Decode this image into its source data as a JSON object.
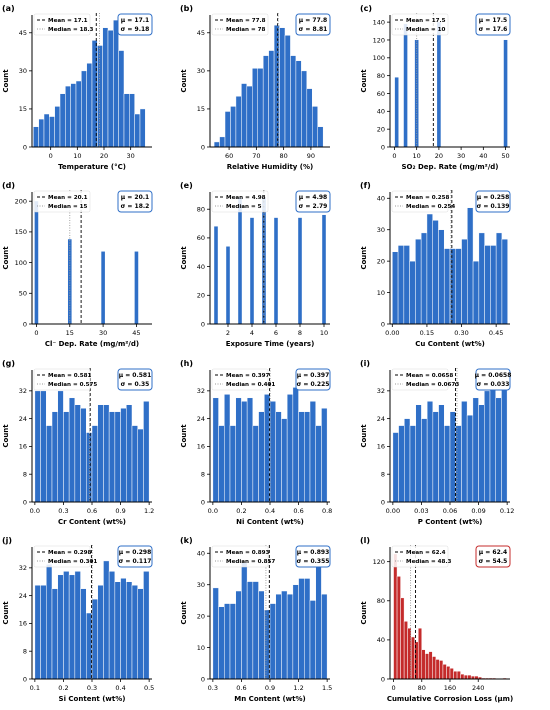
{
  "colors": {
    "bar_default": "#2f6fc7",
    "bar_last": "#c42b2b",
    "stats_border_default": "#2f6fc7",
    "stats_border_last": "#c42b2b",
    "mean_line": "#000000",
    "median_line": "#999999"
  },
  "chart_data": [
    {
      "panel": "(a)",
      "type": "bar",
      "xlabel": "Temperature (°C)",
      "ylabel": "Count",
      "xlim": [
        -7,
        38
      ],
      "ylim": [
        0,
        52
      ],
      "xticks": [
        0,
        10,
        20,
        30
      ],
      "yticks": [
        0,
        15,
        30,
        45
      ],
      "bins": [
        -5.5,
        -3.5,
        -1.5,
        0.5,
        2.5,
        4.5,
        6.5,
        8.5,
        10.5,
        12.5,
        14.5,
        16.5,
        18.5,
        20.5,
        22.5,
        24.5,
        26.5,
        28.5,
        30.5,
        32.5,
        34.5
      ],
      "values": [
        8,
        11,
        13,
        12,
        16,
        21,
        24,
        25,
        26,
        30,
        33,
        42,
        40,
        47,
        46,
        50,
        38,
        21,
        21,
        13,
        15
      ],
      "mean": 17.1,
      "median": 18.3,
      "legend": [
        "Mean = 17.1",
        "Median = 18.3"
      ],
      "stats": [
        "μ = 17.1",
        "σ = 9.18"
      ]
    },
    {
      "panel": "(b)",
      "type": "bar",
      "xlabel": "Relative Humidity (%)",
      "ylabel": "Count",
      "xlim": [
        53,
        97
      ],
      "ylim": [
        0,
        52
      ],
      "xticks": [
        60,
        70,
        80,
        90
      ],
      "yticks": [
        0,
        15,
        30,
        45
      ],
      "bins": [
        55.5,
        57.5,
        59.5,
        61.5,
        63.5,
        65.5,
        67.5,
        69.5,
        71.5,
        73.5,
        75.5,
        77.5,
        79.5,
        81.5,
        83.5,
        85.5,
        87.5,
        89.5,
        91.5,
        93.5
      ],
      "values": [
        2,
        4,
        14,
        16,
        20,
        25,
        24,
        31,
        31,
        36,
        38,
        48,
        47,
        44,
        36,
        34,
        30,
        23,
        16,
        8
      ],
      "mean": 77.8,
      "median": 78,
      "legend": [
        "Mean = 77.8",
        "Median = 78"
      ],
      "stats": [
        "μ = 77.8",
        "σ = 8.81"
      ]
    },
    {
      "panel": "(c)",
      "type": "bar",
      "xlabel": "SO₂ Dep. Rate (mg/m²/d)",
      "ylabel": "Count",
      "xlim": [
        -2,
        52
      ],
      "ylim": [
        0,
        148
      ],
      "xticks": [
        0,
        10,
        20,
        30,
        40,
        50
      ],
      "yticks": [
        0,
        20,
        40,
        60,
        80,
        100,
        120,
        140
      ],
      "bins": [
        1,
        5,
        10,
        20,
        50
      ],
      "values": [
        78,
        138,
        120,
        140,
        120
      ],
      "mean": 17.5,
      "median": 10,
      "legend": [
        "Mean = 17.5",
        "Median = 10"
      ],
      "stats": [
        "μ = 17.5",
        "σ = 17.6"
      ]
    },
    {
      "panel": "(d)",
      "type": "bar",
      "xlabel": "Cl⁻ Dep. Rate (mg/m²/d)",
      "ylabel": "Count",
      "xlim": [
        -2,
        52
      ],
      "ylim": [
        0,
        215
      ],
      "xticks": [
        0,
        15,
        30,
        45
      ],
      "yticks": [
        0,
        50,
        100,
        150,
        200
      ],
      "bins": [
        0,
        15,
        30,
        45
      ],
      "values": [
        200,
        138,
        118,
        118
      ],
      "mean": 20.1,
      "median": 15,
      "legend": [
        "Mean = 20.1",
        "Median = 15"
      ],
      "stats": [
        "μ = 20.1",
        "σ = 18.2"
      ]
    },
    {
      "panel": "(e)",
      "type": "bar",
      "xlabel": "Exposure Time (years)",
      "ylabel": "Count",
      "xlim": [
        0.5,
        10.5
      ],
      "ylim": [
        0,
        92
      ],
      "xticks": [
        2,
        4,
        6,
        8,
        10
      ],
      "yticks": [
        0,
        20,
        40,
        60,
        80
      ],
      "bins": [
        1,
        2,
        3,
        4,
        5,
        6,
        8,
        10
      ],
      "values": [
        68,
        54,
        88,
        74,
        88,
        74,
        74,
        76
      ],
      "mean": 4.98,
      "median": 5,
      "legend": [
        "Mean = 4.98",
        "Median = 5"
      ],
      "stats": [
        "μ = 4.98",
        "σ = 2.79"
      ]
    },
    {
      "panel": "(f)",
      "type": "bar",
      "xlabel": "Cu Content (wt%)",
      "ylabel": "Count",
      "xlim": [
        -0.01,
        0.51
      ],
      "ylim": [
        0,
        42
      ],
      "xticks": [
        0.0,
        0.15,
        0.3,
        0.45
      ],
      "yticks": [
        0,
        10,
        20,
        30,
        40
      ],
      "bins": [
        0.0125,
        0.0375,
        0.0625,
        0.0875,
        0.1125,
        0.1375,
        0.1625,
        0.1875,
        0.2125,
        0.2375,
        0.2625,
        0.2875,
        0.3125,
        0.3375,
        0.3625,
        0.3875,
        0.4125,
        0.4375,
        0.4625,
        0.4875
      ],
      "values": [
        23,
        25,
        25,
        20,
        27,
        29,
        35,
        33,
        30,
        24,
        24,
        24,
        27,
        37,
        20,
        29,
        25,
        25,
        29,
        27
      ],
      "mean": 0.258,
      "median": 0.254,
      "legend": [
        "Mean = 0.258",
        "Median = 0.254"
      ],
      "stats": [
        "μ = 0.258",
        "σ = 0.139"
      ]
    },
    {
      "panel": "(g)",
      "type": "bar",
      "xlabel": "Cr Content (wt%)",
      "ylabel": "Count",
      "xlim": [
        -0.03,
        1.23
      ],
      "ylim": [
        0,
        38
      ],
      "xticks": [
        0.0,
        0.3,
        0.6,
        0.9,
        1.2
      ],
      "yticks": [
        0,
        8,
        16,
        24,
        32
      ],
      "bins": [
        0.03,
        0.09,
        0.15,
        0.21,
        0.27,
        0.33,
        0.39,
        0.45,
        0.51,
        0.57,
        0.63,
        0.69,
        0.75,
        0.81,
        0.87,
        0.93,
        0.99,
        1.05,
        1.11,
        1.17
      ],
      "values": [
        32,
        32,
        22,
        26,
        32,
        26,
        30,
        28,
        27,
        20,
        22,
        28,
        28,
        26,
        26,
        27,
        28,
        22,
        21,
        29
      ],
      "mean": 0.581,
      "median": 0.575,
      "legend": [
        "Mean = 0.581",
        "Median = 0.575"
      ],
      "stats": [
        "μ = 0.581",
        "σ = 0.35"
      ]
    },
    {
      "panel": "(h)",
      "type": "bar",
      "xlabel": "Ni Content (wt%)",
      "ylabel": "Count",
      "xlim": [
        -0.02,
        0.82
      ],
      "ylim": [
        0,
        38
      ],
      "xticks": [
        0.0,
        0.2,
        0.4,
        0.6,
        0.8
      ],
      "yticks": [
        0,
        8,
        16,
        24,
        32
      ],
      "bins": [
        0.02,
        0.06,
        0.1,
        0.14,
        0.18,
        0.22,
        0.26,
        0.3,
        0.34,
        0.38,
        0.42,
        0.46,
        0.5,
        0.54,
        0.58,
        0.62,
        0.66,
        0.7,
        0.74,
        0.78
      ],
      "values": [
        30,
        22,
        31,
        22,
        30,
        29,
        30,
        22,
        26,
        31,
        29,
        26,
        24,
        31,
        33,
        26,
        26,
        29,
        22,
        27
      ],
      "mean": 0.397,
      "median": 0.401,
      "legend": [
        "Mean = 0.397",
        "Median = 0.401"
      ],
      "stats": [
        "μ = 0.397",
        "σ = 0.225"
      ]
    },
    {
      "panel": "(i)",
      "type": "bar",
      "xlabel": "P Content (wt%)",
      "ylabel": "Count",
      "xlim": [
        -0.003,
        0.123
      ],
      "ylim": [
        0,
        38
      ],
      "xticks": [
        0.0,
        0.03,
        0.06,
        0.09,
        0.12
      ],
      "yticks": [
        0,
        8,
        16,
        24,
        32
      ],
      "bins": [
        0.003,
        0.009,
        0.015,
        0.021,
        0.027,
        0.033,
        0.039,
        0.045,
        0.051,
        0.057,
        0.063,
        0.069,
        0.075,
        0.081,
        0.087,
        0.093,
        0.099,
        0.105,
        0.111,
        0.117
      ],
      "values": [
        20,
        22,
        24,
        22,
        28,
        24,
        29,
        26,
        28,
        22,
        26,
        22,
        29,
        25,
        30,
        28,
        32,
        34,
        30,
        34
      ],
      "mean": 0.0658,
      "median": 0.0673,
      "legend": [
        "Mean = 0.0658",
        "Median = 0.0673"
      ],
      "stats": [
        "μ = 0.0658",
        "σ = 0.033"
      ]
    },
    {
      "panel": "(j)",
      "type": "bar",
      "xlabel": "Si Content (wt%)",
      "ylabel": "Count",
      "xlim": [
        0.09,
        0.51
      ],
      "ylim": [
        0,
        38
      ],
      "xticks": [
        0.1,
        0.2,
        0.3,
        0.4,
        0.5
      ],
      "yticks": [
        0,
        8,
        16,
        24,
        32
      ],
      "bins": [
        0.11,
        0.13,
        0.15,
        0.17,
        0.19,
        0.21,
        0.23,
        0.25,
        0.27,
        0.29,
        0.31,
        0.33,
        0.35,
        0.37,
        0.39,
        0.41,
        0.43,
        0.45,
        0.47,
        0.49
      ],
      "values": [
        27,
        27,
        33,
        26,
        30,
        31,
        30,
        31,
        26,
        19,
        23,
        27,
        34,
        31,
        28,
        29,
        28,
        27,
        26,
        31
      ],
      "mean": 0.298,
      "median": 0.301,
      "legend": [
        "Mean = 0.298",
        "Median = 0.301"
      ],
      "stats": [
        "μ = 0.298",
        "σ = 0.117"
      ]
    },
    {
      "panel": "(k)",
      "type": "bar",
      "xlabel": "Mn Content (wt%)",
      "ylabel": "Count",
      "xlim": [
        0.27,
        1.53
      ],
      "ylim": [
        0,
        42
      ],
      "xticks": [
        0.3,
        0.6,
        0.9,
        1.2,
        1.5
      ],
      "yticks": [
        0,
        10,
        20,
        30,
        40
      ],
      "bins": [
        0.33,
        0.39,
        0.45,
        0.51,
        0.57,
        0.63,
        0.69,
        0.75,
        0.81,
        0.87,
        0.93,
        0.99,
        1.05,
        1.11,
        1.17,
        1.23,
        1.29,
        1.35,
        1.41,
        1.47
      ],
      "values": [
        29,
        23,
        24,
        24,
        28,
        37,
        31,
        31,
        28,
        22,
        24,
        27,
        28,
        27,
        30,
        32,
        32,
        25,
        37,
        27
      ],
      "mean": 0.893,
      "median": 0.857,
      "legend": [
        "Mean = 0.893",
        "Median = 0.857"
      ],
      "stats": [
        "μ = 0.893",
        "σ = 0.355"
      ]
    },
    {
      "panel": "(l)",
      "type": "bar",
      "xlabel": "Cumulative Corrosion Loss (μm)",
      "ylabel": "Count",
      "xlim": [
        -10,
        330
      ],
      "ylim": [
        0,
        135
      ],
      "xticks": [
        0,
        80,
        160,
        240
      ],
      "yticks": [
        0,
        40,
        80,
        120
      ],
      "bins": [
        5,
        15,
        25,
        35,
        45,
        55,
        65,
        75,
        85,
        95,
        105,
        115,
        125,
        135,
        145,
        155,
        165,
        175,
        185,
        195,
        205,
        215,
        225,
        235,
        245,
        255,
        265,
        275,
        285,
        295,
        305,
        315
      ],
      "values": [
        128,
        105,
        83,
        59,
        52,
        43,
        38,
        52,
        30,
        26,
        28,
        23,
        20,
        19,
        15,
        13,
        11,
        8,
        8,
        5,
        4,
        4,
        3,
        3,
        2,
        1,
        1,
        1,
        1,
        0,
        0,
        1
      ],
      "mean": 62.4,
      "median": 48.3,
      "legend": [
        "Mean = 62.4",
        "Median = 48.3"
      ],
      "stats": [
        "μ = 62.4",
        "σ = 54.5"
      ]
    }
  ]
}
